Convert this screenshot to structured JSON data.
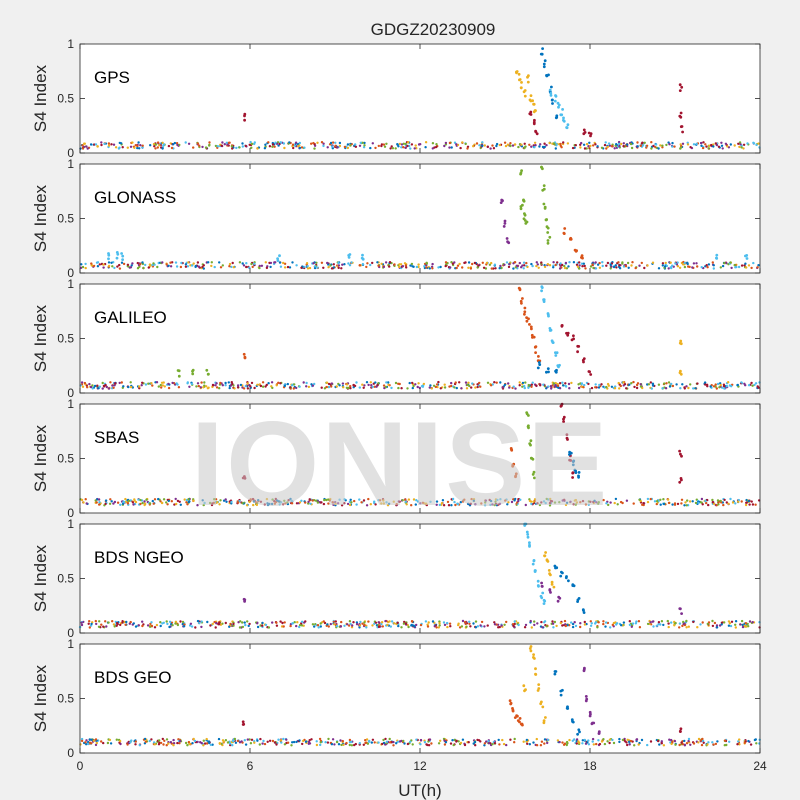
{
  "figure": {
    "title": "GDGZ20230909",
    "xlabel": "UT(h)",
    "watermark": "IONISE",
    "colors": [
      "#0072BD",
      "#D95319",
      "#EDB120",
      "#7E2F8E",
      "#77AC30",
      "#4DBEEE",
      "#A2142F"
    ]
  },
  "chart_data": [
    {
      "type": "scatter",
      "panel_label": "GPS",
      "ylabel": "S4 Index",
      "xlim": [
        0,
        24
      ],
      "ylim": [
        0,
        1
      ],
      "xticks": [
        0,
        6,
        12,
        18,
        24
      ],
      "yticks": [
        0,
        0.5,
        1
      ],
      "xtick_labels_shown": false,
      "baseline": 0.07,
      "series": [
        {
          "color_index": 2,
          "points": [
            [
              15.4,
              0.75
            ],
            [
              15.5,
              0.7
            ],
            [
              15.6,
              0.62
            ],
            [
              15.7,
              0.55
            ],
            [
              15.8,
              0.68
            ],
            [
              15.9,
              0.5
            ],
            [
              16.0,
              0.45
            ],
            [
              16.05,
              0.38
            ]
          ]
        },
        {
          "color_index": 0,
          "points": [
            [
              16.3,
              0.93
            ],
            [
              16.4,
              0.82
            ],
            [
              16.5,
              0.7
            ],
            [
              16.6,
              0.58
            ],
            [
              16.7,
              0.47
            ],
            [
              16.8,
              0.35
            ]
          ]
        },
        {
          "color_index": 5,
          "points": [
            [
              16.6,
              0.55
            ],
            [
              16.8,
              0.5
            ],
            [
              16.9,
              0.45
            ],
            [
              17.0,
              0.38
            ],
            [
              17.1,
              0.3
            ],
            [
              17.2,
              0.24
            ]
          ]
        },
        {
          "color_index": 6,
          "points": [
            [
              15.9,
              0.35
            ],
            [
              16.0,
              0.28
            ],
            [
              16.1,
              0.2
            ],
            [
              17.8,
              0.2
            ],
            [
              18.0,
              0.17
            ],
            [
              21.2,
              0.6
            ],
            [
              21.2,
              0.35
            ],
            [
              21.25,
              0.22
            ],
            [
              5.8,
              0.33
            ]
          ]
        }
      ]
    },
    {
      "type": "scatter",
      "panel_label": "GLONASS",
      "ylabel": "S4 Index",
      "xlim": [
        0,
        24
      ],
      "ylim": [
        0,
        1
      ],
      "xticks": [
        0,
        6,
        12,
        18,
        24
      ],
      "yticks": [
        0,
        0.5,
        1
      ],
      "xtick_labels_shown": false,
      "baseline": 0.07,
      "series": [
        {
          "color_index": 4,
          "points": [
            [
              15.55,
              0.92
            ],
            [
              15.6,
              0.6
            ],
            [
              15.65,
              0.66
            ],
            [
              15.7,
              0.52
            ],
            [
              15.75,
              0.48
            ],
            [
              16.3,
              0.95
            ],
            [
              16.35,
              0.78
            ],
            [
              16.4,
              0.62
            ],
            [
              16.45,
              0.5
            ],
            [
              16.5,
              0.4
            ],
            [
              16.55,
              0.3
            ]
          ]
        },
        {
          "color_index": 3,
          "points": [
            [
              14.9,
              0.65
            ],
            [
              15.0,
              0.45
            ],
            [
              15.1,
              0.3
            ]
          ]
        },
        {
          "color_index": 1,
          "points": [
            [
              17.1,
              0.38
            ],
            [
              17.3,
              0.3
            ],
            [
              17.5,
              0.22
            ],
            [
              17.7,
              0.16
            ]
          ]
        },
        {
          "color_index": 5,
          "points": [
            [
              1.0,
              0.15
            ],
            [
              1.3,
              0.16
            ],
            [
              1.5,
              0.15
            ],
            [
              7.0,
              0.14
            ],
            [
              9.5,
              0.14
            ],
            [
              10.0,
              0.15
            ],
            [
              22.5,
              0.15
            ],
            [
              23.5,
              0.16
            ]
          ]
        }
      ]
    },
    {
      "type": "scatter",
      "panel_label": "GALILEO",
      "ylabel": "S4 Index",
      "xlim": [
        0,
        24
      ],
      "ylim": [
        0,
        1
      ],
      "xticks": [
        0,
        6,
        12,
        18,
        24
      ],
      "yticks": [
        0,
        0.5,
        1
      ],
      "xtick_labels_shown": false,
      "baseline": 0.07,
      "series": [
        {
          "color_index": 1,
          "points": [
            [
              15.5,
              0.95
            ],
            [
              15.6,
              0.85
            ],
            [
              15.7,
              0.75
            ],
            [
              15.8,
              0.68
            ],
            [
              15.9,
              0.6
            ],
            [
              16.0,
              0.5
            ],
            [
              16.1,
              0.4
            ],
            [
              16.2,
              0.32
            ],
            [
              5.8,
              0.34
            ]
          ]
        },
        {
          "color_index": 5,
          "points": [
            [
              16.3,
              0.95
            ],
            [
              16.4,
              0.85
            ],
            [
              16.5,
              0.72
            ],
            [
              16.6,
              0.6
            ],
            [
              16.7,
              0.48
            ],
            [
              16.8,
              0.36
            ],
            [
              16.9,
              0.25
            ]
          ]
        },
        {
          "color_index": 6,
          "points": [
            [
              17.0,
              0.6
            ],
            [
              17.2,
              0.55
            ],
            [
              17.4,
              0.5
            ],
            [
              17.6,
              0.4
            ],
            [
              17.8,
              0.3
            ],
            [
              18.0,
              0.18
            ]
          ]
        },
        {
          "color_index": 0,
          "points": [
            [
              16.2,
              0.25
            ],
            [
              16.5,
              0.2
            ],
            [
              16.8,
              0.18
            ]
          ]
        },
        {
          "color_index": 2,
          "points": [
            [
              21.2,
              0.48
            ],
            [
              21.2,
              0.2
            ]
          ]
        },
        {
          "color_index": 4,
          "points": [
            [
              3.5,
              0.18
            ],
            [
              4.0,
              0.19
            ],
            [
              4.5,
              0.2
            ]
          ]
        }
      ]
    },
    {
      "type": "scatter",
      "panel_label": "SBAS",
      "ylabel": "S4 Index",
      "xlim": [
        0,
        24
      ],
      "ylim": [
        0,
        1
      ],
      "xticks": [
        0,
        6,
        12,
        18,
        24
      ],
      "yticks": [
        0,
        0.5,
        1
      ],
      "xtick_labels_shown": false,
      "baseline": 0.1,
      "series": [
        {
          "color_index": 4,
          "points": [
            [
              15.8,
              0.92
            ],
            [
              15.85,
              0.8
            ],
            [
              15.9,
              0.65
            ],
            [
              15.95,
              0.5
            ],
            [
              16.0,
              0.35
            ]
          ]
        },
        {
          "color_index": 1,
          "points": [
            [
              15.2,
              0.6
            ],
            [
              15.3,
              0.45
            ],
            [
              15.4,
              0.35
            ]
          ]
        },
        {
          "color_index": 6,
          "points": [
            [
              17.0,
              1.0
            ],
            [
              17.1,
              0.85
            ],
            [
              17.2,
              0.7
            ],
            [
              17.3,
              0.5
            ],
            [
              17.4,
              0.35
            ],
            [
              5.8,
              0.34
            ],
            [
              21.2,
              0.55
            ],
            [
              21.2,
              0.3
            ]
          ]
        },
        {
          "color_index": 0,
          "points": [
            [
              17.3,
              0.55
            ],
            [
              17.4,
              0.45
            ],
            [
              17.5,
              0.4
            ],
            [
              17.6,
              0.35
            ]
          ]
        }
      ]
    },
    {
      "type": "scatter",
      "panel_label": "BDS NGEO",
      "ylabel": "S4 Index",
      "xlim": [
        0,
        24
      ],
      "ylim": [
        0,
        1
      ],
      "xticks": [
        0,
        6,
        12,
        18,
        24
      ],
      "yticks": [
        0,
        0.5,
        1
      ],
      "xtick_labels_shown": false,
      "baseline": 0.08,
      "series": [
        {
          "color_index": 5,
          "points": [
            [
              15.7,
              1.0
            ],
            [
              15.8,
              0.9
            ],
            [
              15.9,
              0.8
            ],
            [
              16.0,
              0.65
            ],
            [
              16.1,
              0.55
            ],
            [
              16.2,
              0.45
            ],
            [
              16.3,
              0.35
            ],
            [
              16.4,
              0.28
            ]
          ]
        },
        {
          "color_index": 2,
          "points": [
            [
              16.4,
              0.72
            ],
            [
              16.5,
              0.65
            ],
            [
              16.6,
              0.55
            ],
            [
              16.7,
              0.45
            ]
          ]
        },
        {
          "color_index": 0,
          "points": [
            [
              16.8,
              0.6
            ],
            [
              17.0,
              0.55
            ],
            [
              17.2,
              0.5
            ],
            [
              17.4,
              0.42
            ],
            [
              17.6,
              0.3
            ],
            [
              17.8,
              0.2
            ]
          ]
        },
        {
          "color_index": 3,
          "points": [
            [
              16.3,
              0.45
            ],
            [
              16.6,
              0.4
            ],
            [
              16.9,
              0.32
            ],
            [
              5.8,
              0.28
            ],
            [
              21.2,
              0.2
            ]
          ]
        }
      ]
    },
    {
      "type": "scatter",
      "panel_label": "BDS GEO",
      "ylabel": "S4 Index",
      "xlim": [
        0,
        24
      ],
      "ylim": [
        0,
        1
      ],
      "xticks": [
        0,
        6,
        12,
        18,
        24
      ],
      "yticks": [
        0,
        0.5,
        1
      ],
      "xtick_labels": [
        "0",
        "6",
        "12",
        "18",
        "24"
      ],
      "xtick_labels_shown": true,
      "baseline": 0.1,
      "series": [
        {
          "color_index": 1,
          "points": [
            [
              15.2,
              0.45
            ],
            [
              15.3,
              0.4
            ],
            [
              15.4,
              0.35
            ],
            [
              15.5,
              0.3
            ],
            [
              15.6,
              0.25
            ]
          ]
        },
        {
          "color_index": 2,
          "points": [
            [
              15.9,
              0.95
            ],
            [
              16.0,
              0.88
            ],
            [
              16.1,
              0.75
            ],
            [
              16.2,
              0.6
            ],
            [
              16.3,
              0.45
            ],
            [
              16.4,
              0.3
            ],
            [
              15.7,
              0.6
            ]
          ]
        },
        {
          "color_index": 0,
          "points": [
            [
              16.8,
              0.75
            ],
            [
              17.0,
              0.55
            ],
            [
              17.2,
              0.4
            ],
            [
              17.4,
              0.28
            ],
            [
              17.6,
              0.2
            ]
          ]
        },
        {
          "color_index": 3,
          "points": [
            [
              17.8,
              0.78
            ],
            [
              17.9,
              0.5
            ],
            [
              18.0,
              0.35
            ],
            [
              18.1,
              0.25
            ],
            [
              18.3,
              0.18
            ]
          ]
        },
        {
          "color_index": 6,
          "points": [
            [
              5.8,
              0.27
            ],
            [
              21.2,
              0.2
            ]
          ]
        }
      ]
    }
  ]
}
